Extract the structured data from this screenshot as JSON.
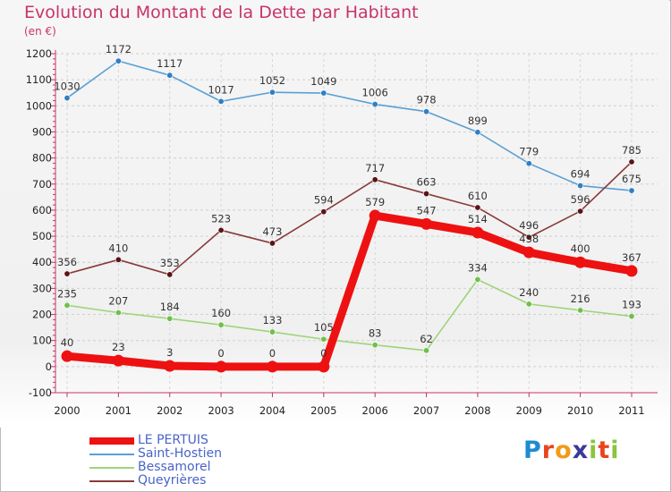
{
  "header": {
    "title": "Evolution du Montant de la Dette par Habitant",
    "unit": "(en €)"
  },
  "colors": {
    "title": "#c8336a",
    "legend_text": "#4a63c8"
  },
  "logo": {
    "letters": [
      "P",
      "r",
      "o",
      "x",
      "i",
      "t",
      "i"
    ],
    "letter_colors": [
      "#1e8bd0",
      "#e8451e",
      "#f29a1a",
      "#3a3a9a",
      "#8bc43f",
      "#e8451e",
      "#8bc43f"
    ]
  },
  "chart_data": {
    "type": "line",
    "title": "Evolution du Montant de la Dette par Habitant",
    "ylabel": "(en €)",
    "xlabel": "",
    "x": [
      "2000",
      "2001",
      "2002",
      "2003",
      "2004",
      "2005",
      "2006",
      "2007",
      "2008",
      "2009",
      "2010",
      "2011"
    ],
    "ylim": [
      -100,
      1200
    ],
    "yticks": [
      "-100",
      "0",
      "100",
      "200",
      "300",
      "400",
      "500",
      "600",
      "700",
      "800",
      "900",
      "1000",
      "1100",
      "1200"
    ],
    "grid": true,
    "legend": "bottom-left",
    "series": [
      {
        "name": "Saint-Hostien",
        "color": "#5a9fd4",
        "point_color": "#2f7fc4",
        "values": [
          1030,
          1172,
          1117,
          1017,
          1052,
          1049,
          1006,
          978,
          899,
          779,
          694,
          675
        ],
        "labels": [
          "1030",
          "1172",
          "1117",
          "1017",
          "1052",
          "1049",
          "1006",
          "978",
          "899",
          "779",
          "694",
          "675"
        ]
      },
      {
        "name": "Queyrières",
        "color": "#8a3a3a",
        "point_color": "#5a1418",
        "values": [
          356,
          410,
          353,
          523,
          473,
          594,
          717,
          663,
          610,
          496,
          596,
          785
        ],
        "labels": [
          "356",
          "410",
          "353",
          "523",
          "473",
          "594",
          "717",
          "663",
          "610",
          "496",
          "596",
          "785"
        ]
      },
      {
        "name": "Bessamorel",
        "color": "#9ed47a",
        "point_color": "#6fc04a",
        "values": [
          235,
          207,
          184,
          160,
          133,
          105,
          83,
          62,
          334,
          240,
          216,
          193
        ],
        "labels": [
          "235",
          "207",
          "184",
          "160",
          "133",
          "105",
          "83",
          "62",
          "334",
          "240",
          "216",
          "193"
        ]
      },
      {
        "name": "LE PERTUIS",
        "color": "#ee1111",
        "point_color": "#ee1111",
        "values": [
          40,
          23,
          3,
          0,
          0,
          0,
          579,
          547,
          514,
          438,
          400,
          367
        ],
        "labels": [
          "40",
          "23",
          "3",
          "0",
          "0",
          "0",
          "579",
          "547",
          "514",
          "438",
          "400",
          "367"
        ]
      }
    ]
  },
  "legend": {
    "items": [
      {
        "label": "LE PERTUIS",
        "color": "#ee1111",
        "thick": true
      },
      {
        "label": "Saint-Hostien",
        "color": "#5a9fd4",
        "thick": false
      },
      {
        "label": "Bessamorel",
        "color": "#9ed47a",
        "thick": false
      },
      {
        "label": "Queyrières",
        "color": "#8a3a3a",
        "thick": false
      }
    ]
  }
}
